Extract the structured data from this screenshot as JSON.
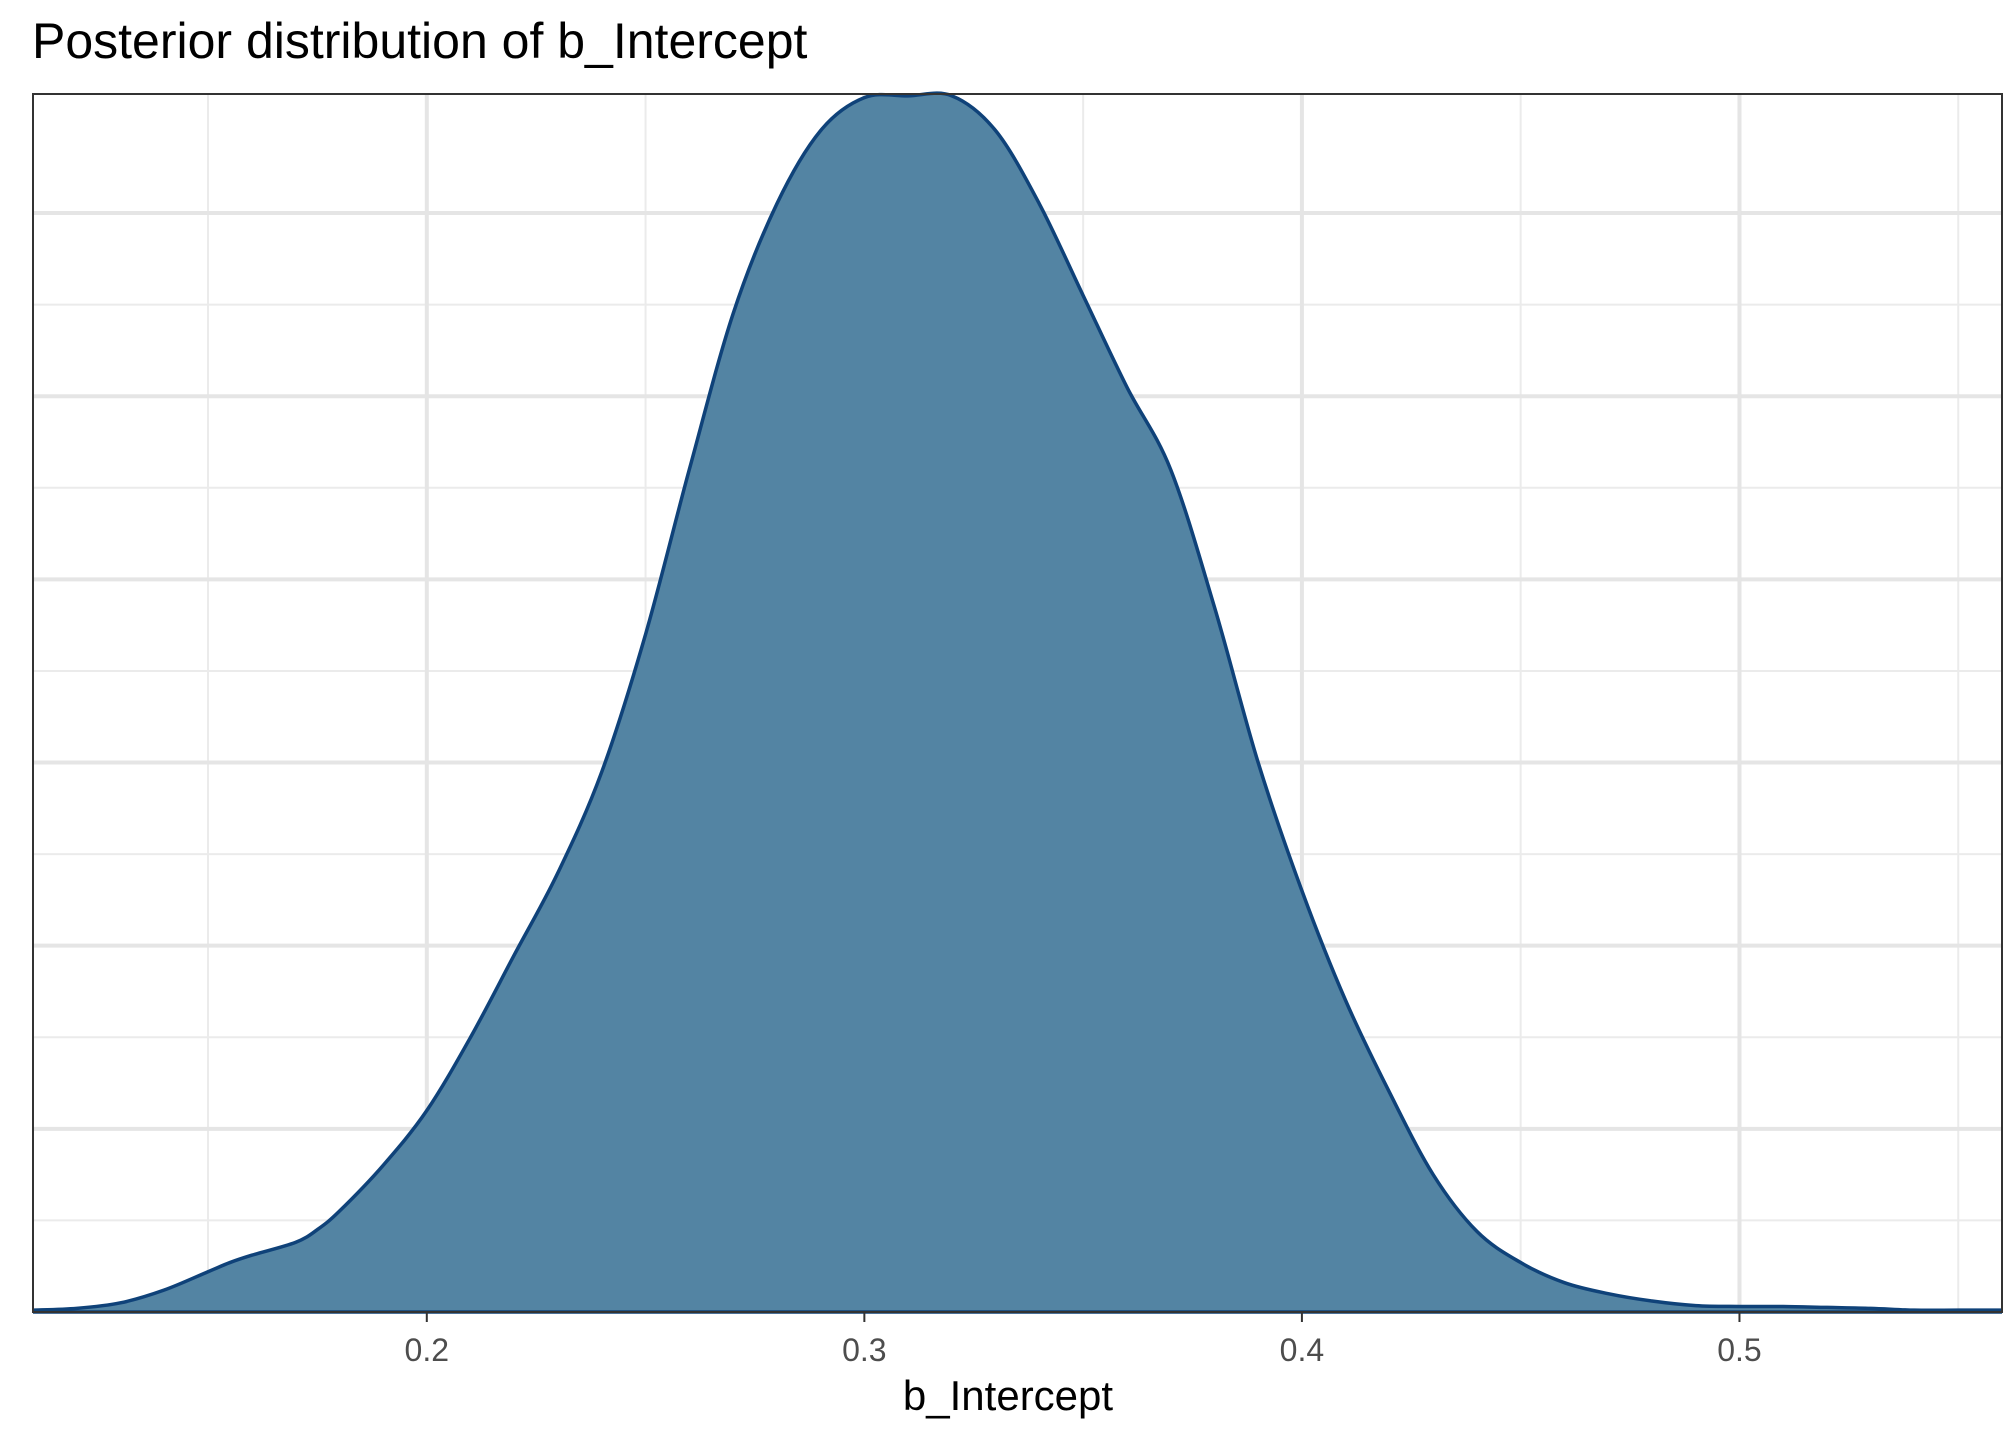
{
  "chart_data": {
    "type": "area",
    "title": "Posterior distribution of b_Intercept",
    "xlabel": "b_Intercept",
    "ylabel": "",
    "xlim": [
      0.11,
      0.56
    ],
    "ylim": [
      0,
      6.65
    ],
    "x_ticks": [
      0.2,
      0.3,
      0.4,
      0.5
    ],
    "x_tick_labels": [
      "0.2",
      "0.3",
      "0.4",
      "0.5"
    ],
    "x_minor_gridlines": [
      0.15,
      0.25,
      0.35,
      0.45,
      0.55
    ],
    "y_major_gridlines": [
      1,
      2,
      3,
      4,
      5,
      6
    ],
    "y_minor_gridlines": [
      0.5,
      1.5,
      2.5,
      3.5,
      4.5,
      5.5
    ],
    "y_ticks_labeled": false,
    "grid": true,
    "legend": "none",
    "fill_color": "#5384A3",
    "line_color": "#0F4279",
    "series": [
      {
        "x": [
          0.11,
          0.12,
          0.13,
          0.14,
          0.15,
          0.155,
          0.16,
          0.17,
          0.175,
          0.18,
          0.19,
          0.2,
          0.21,
          0.22,
          0.23,
          0.24,
          0.25,
          0.26,
          0.27,
          0.28,
          0.29,
          0.3,
          0.31,
          0.32,
          0.33,
          0.34,
          0.35,
          0.36,
          0.37,
          0.38,
          0.39,
          0.4,
          0.41,
          0.42,
          0.43,
          0.44,
          0.45,
          0.46,
          0.47,
          0.48,
          0.49,
          0.5,
          0.51,
          0.52,
          0.53,
          0.54,
          0.55,
          0.56
        ],
        "y": [
          0.01,
          0.02,
          0.05,
          0.12,
          0.22,
          0.27,
          0.31,
          0.38,
          0.45,
          0.55,
          0.8,
          1.1,
          1.5,
          1.95,
          2.4,
          2.95,
          3.7,
          4.6,
          5.45,
          6.05,
          6.45,
          6.63,
          6.64,
          6.64,
          6.45,
          6.05,
          5.55,
          5.05,
          4.6,
          3.85,
          3.0,
          2.3,
          1.7,
          1.2,
          0.75,
          0.44,
          0.27,
          0.16,
          0.1,
          0.06,
          0.035,
          0.03,
          0.03,
          0.025,
          0.02,
          0.01,
          0.01,
          0.01
        ]
      }
    ]
  }
}
